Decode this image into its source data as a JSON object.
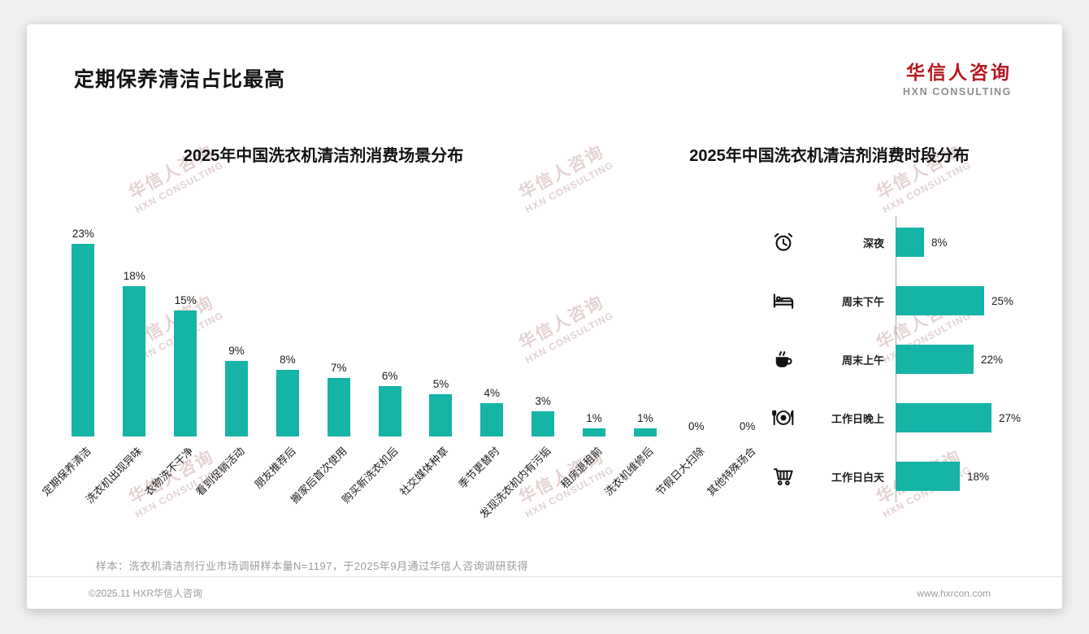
{
  "page": {
    "title": "定期保养清洁占比最高",
    "logo": {
      "cn": "华信人咨询",
      "en": "HXN CONSULTING"
    },
    "watermark": {
      "cn": "华信人咨询",
      "en": "HXN CONSULTING"
    },
    "note": "样本：洗衣机清洁剂行业市场调研样本量N=1197，于2025年9月通过华信人咨询调研获得",
    "footer": {
      "left": "©2025.11 HXR华信人咨询",
      "right": "www.hxrcon.com"
    }
  },
  "colors": {
    "bar_teal": "#16b3a7",
    "logo_red": "#b5191f",
    "watermark_pink": "rgba(187,143,143,0.40)"
  },
  "chart_data": [
    {
      "type": "bar",
      "orientation": "vertical",
      "title": "2025年中国洗衣机清洁剂消费场景分布",
      "unit": "%",
      "categories": [
        "定期保养清洁",
        "洗衣机出现异味",
        "衣物洗不干净",
        "看到促销活动",
        "朋友推荐后",
        "搬家后首次使用",
        "购买新洗衣机后",
        "社交媒体种草",
        "季节更替时",
        "发现洗衣机内有污垢",
        "租房退租前",
        "洗衣机维修后",
        "节假日大扫除",
        "其他特殊场合"
      ],
      "values": [
        23,
        18,
        15,
        9,
        8,
        7,
        6,
        5,
        4,
        3,
        1,
        1,
        0,
        0
      ],
      "value_labels": [
        "23%",
        "18%",
        "15%",
        "9%",
        "8%",
        "7%",
        "6%",
        "5%",
        "4%",
        "3%",
        "1%",
        "1%",
        "0%",
        "0%"
      ],
      "ylim": [
        0,
        25
      ],
      "grid": false,
      "legend": "none",
      "bar_color": "#16b3a7"
    },
    {
      "type": "bar",
      "orientation": "horizontal",
      "title": "2025年中国洗衣机清洁剂消费时段分布",
      "unit": "%",
      "categories": [
        "深夜",
        "周末下午",
        "周末上午",
        "工作日晚上",
        "工作日白天"
      ],
      "values": [
        8,
        25,
        22,
        27,
        18
      ],
      "value_labels": [
        "8%",
        "25%",
        "22%",
        "27%",
        "18%"
      ],
      "icons": [
        "alarm-clock-icon",
        "bed-icon",
        "coffee-cup-icon",
        "dining-plate-icon",
        "shopping-cart-icon"
      ],
      "xlim": [
        0,
        30
      ],
      "grid": false,
      "legend": "none",
      "bar_color": "#16b3a7"
    }
  ]
}
